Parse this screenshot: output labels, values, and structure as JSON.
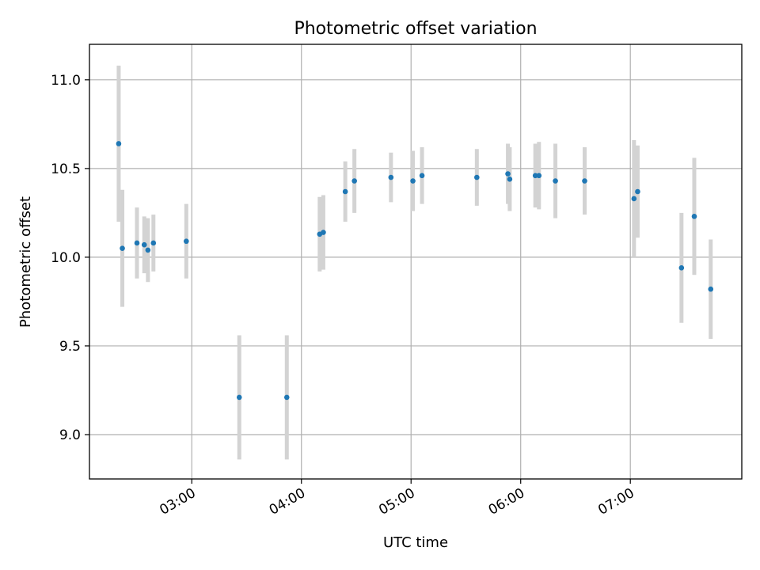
{
  "chart_data": {
    "type": "scatter",
    "title": "Photometric offset variation",
    "xlabel": "UTC time",
    "ylabel": "Photometric offset",
    "xlim": [
      "02:04",
      "08:01"
    ],
    "ylim": [
      8.75,
      11.2
    ],
    "x_ticks": [
      "03:00",
      "04:00",
      "05:00",
      "06:00",
      "07:00"
    ],
    "y_ticks": [
      9.0,
      9.5,
      10.0,
      10.5,
      11.0
    ],
    "y_tick_labels": [
      "9.0",
      "9.5",
      "10.0",
      "10.5",
      "11.0"
    ],
    "grid": true,
    "marker_color": "#1f77b4",
    "errorbar_color": "#d3d3d3",
    "points": [
      {
        "x": "02:20",
        "y": 10.64,
        "err": 0.44
      },
      {
        "x": "02:22",
        "y": 10.05,
        "err": 0.33
      },
      {
        "x": "02:30",
        "y": 10.08,
        "err": 0.2
      },
      {
        "x": "02:34",
        "y": 10.07,
        "err": 0.16
      },
      {
        "x": "02:36",
        "y": 10.04,
        "err": 0.18
      },
      {
        "x": "02:39",
        "y": 10.08,
        "err": 0.16
      },
      {
        "x": "02:57",
        "y": 10.09,
        "err": 0.21
      },
      {
        "x": "03:26",
        "y": 9.21,
        "err": 0.35
      },
      {
        "x": "03:52",
        "y": 9.21,
        "err": 0.35
      },
      {
        "x": "04:10",
        "y": 10.13,
        "err": 0.21
      },
      {
        "x": "04:12",
        "y": 10.14,
        "err": 0.21
      },
      {
        "x": "04:24",
        "y": 10.37,
        "err": 0.17
      },
      {
        "x": "04:29",
        "y": 10.43,
        "err": 0.18
      },
      {
        "x": "04:49",
        "y": 10.45,
        "err": 0.14
      },
      {
        "x": "05:01",
        "y": 10.43,
        "err": 0.17
      },
      {
        "x": "05:06",
        "y": 10.46,
        "err": 0.16
      },
      {
        "x": "05:36",
        "y": 10.45,
        "err": 0.16
      },
      {
        "x": "05:53",
        "y": 10.47,
        "err": 0.17
      },
      {
        "x": "05:54",
        "y": 10.44,
        "err": 0.18
      },
      {
        "x": "06:08",
        "y": 10.46,
        "err": 0.18
      },
      {
        "x": "06:10",
        "y": 10.46,
        "err": 0.19
      },
      {
        "x": "06:19",
        "y": 10.43,
        "err": 0.21
      },
      {
        "x": "06:35",
        "y": 10.43,
        "err": 0.19
      },
      {
        "x": "07:02",
        "y": 10.33,
        "err": 0.33
      },
      {
        "x": "07:04",
        "y": 10.37,
        "err": 0.26
      },
      {
        "x": "07:28",
        "y": 9.94,
        "err": 0.31
      },
      {
        "x": "07:35",
        "y": 10.23,
        "err": 0.33
      },
      {
        "x": "07:44",
        "y": 9.82,
        "err": 0.28
      }
    ]
  }
}
